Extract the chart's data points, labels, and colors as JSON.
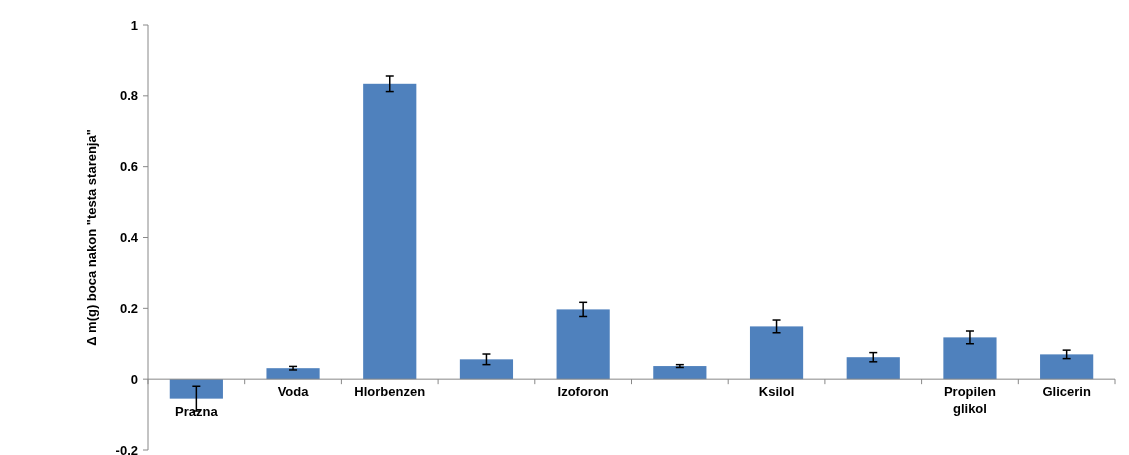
{
  "chart_data": {
    "type": "bar",
    "ylabel": "Δ m(g) boca nakon \"testa starenja\"",
    "categories": [
      "Prazna",
      "Voda",
      "Hlorbenzen",
      null,
      "Izoforon",
      null,
      "Ksilol",
      null,
      "Propilen glikol",
      "Glicerin"
    ],
    "values": [
      -0.055,
      0.031,
      0.834,
      0.056,
      0.197,
      0.037,
      0.149,
      0.062,
      0.118,
      0.07
    ],
    "errors": [
      0.035,
      0.005,
      0.022,
      0.015,
      0.02,
      0.004,
      0.018,
      0.013,
      0.018,
      0.012
    ],
    "color": "#4f81bd",
    "ylim": [
      -0.2,
      1
    ],
    "yticks": [
      -0.2,
      0,
      0.2,
      0.4,
      0.6,
      0.8,
      1
    ],
    "grid": false
  }
}
